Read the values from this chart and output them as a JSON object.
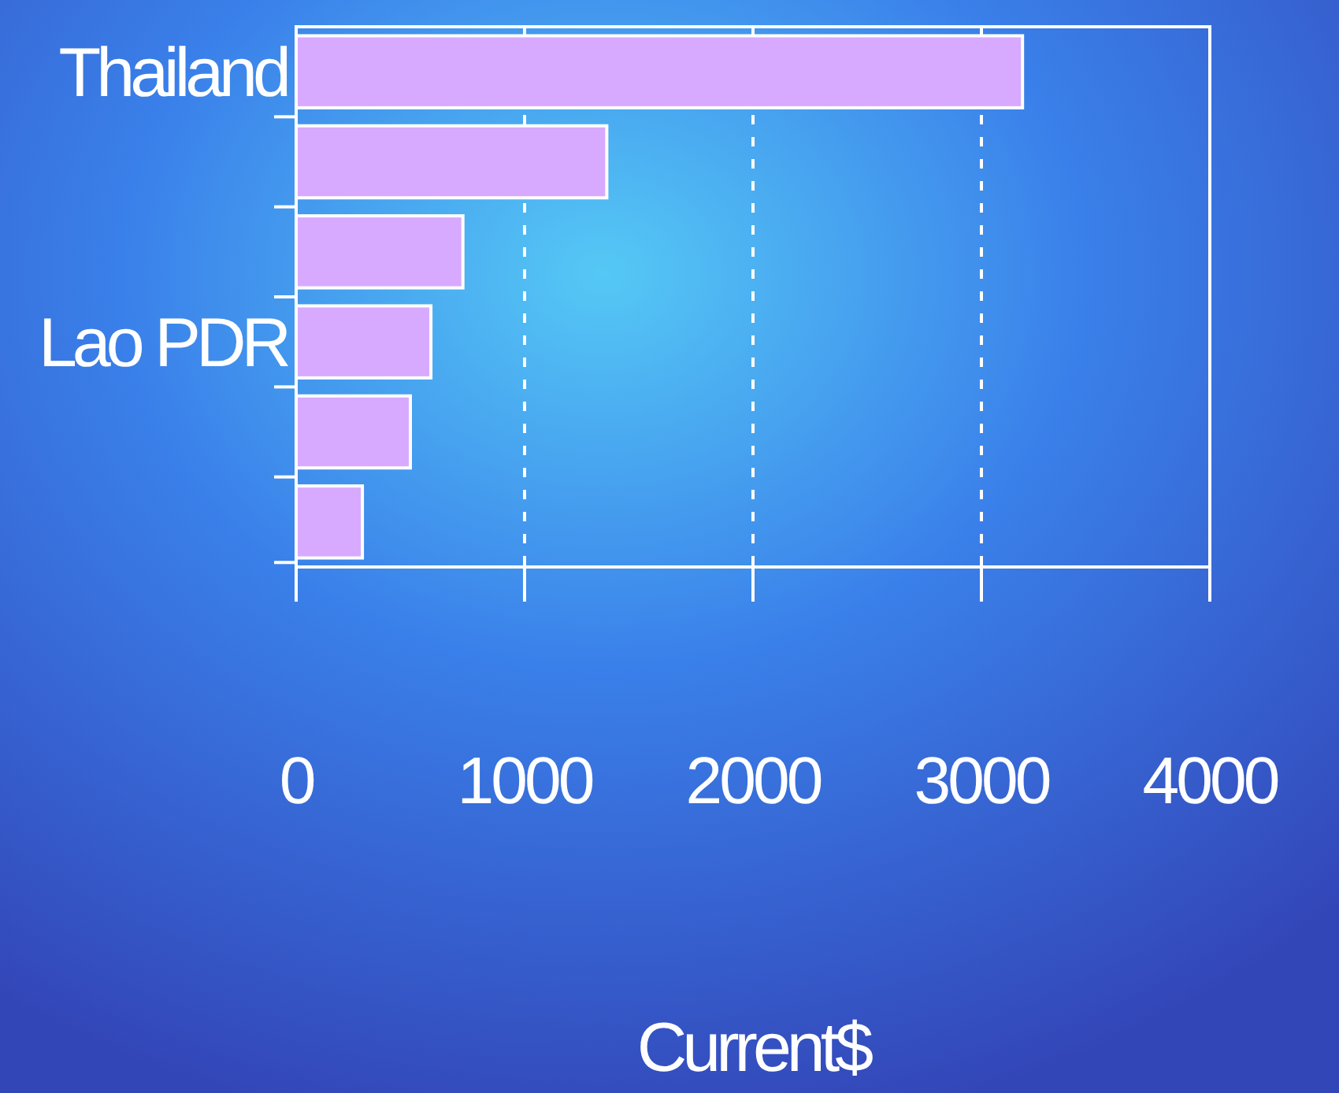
{
  "chart_data": {
    "type": "bar",
    "orientation": "horizontal",
    "xlabel": "Current$",
    "categories": [
      "Thailand",
      null,
      null,
      "Lao PDR",
      null,
      null
    ],
    "values": [
      3180,
      1360,
      730,
      590,
      500,
      290
    ],
    "color": "#d8aaff",
    "xlim": [
      0,
      4000
    ],
    "xticks": [
      0,
      1000,
      2000,
      3000,
      4000
    ],
    "grid": "x"
  }
}
